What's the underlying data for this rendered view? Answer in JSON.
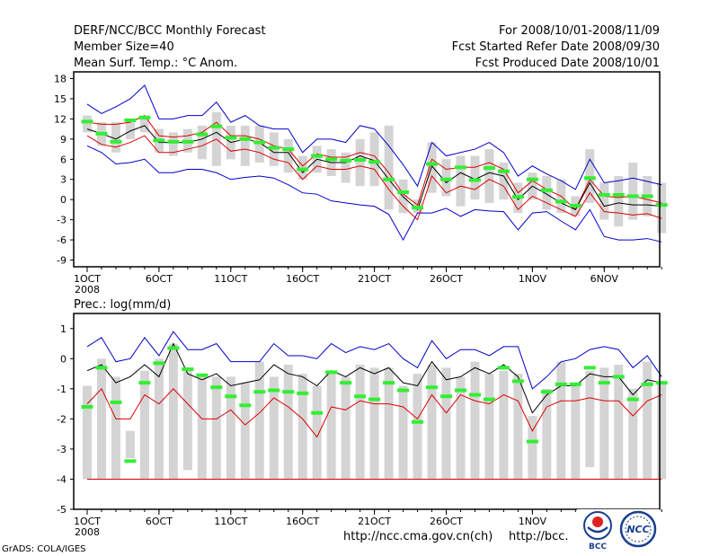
{
  "header": {
    "title": "DERF/NCC/BCC Monthly Forecast",
    "member_size": "Member Size=40",
    "variable": "Mean Surf. Temp.: °C Anom.",
    "period": "For 2008/10/01-2008/11/09",
    "start": "Fcst Started Refer Date 2008/09/30",
    "produced": "Fcst Produced Date 2008/10/01"
  },
  "footer": {
    "grads": "GrADS: COLA/IGES",
    "url1": "http://ncc.cma.gov.cn(ch)",
    "url2": "http://bcc.",
    "logo1": "BCC",
    "logo2": "NCC"
  },
  "colors": {
    "obs": "#33ee33",
    "box": "#d4d4d4",
    "ensmax": "#0000cc",
    "ensmin": "#0000cc",
    "inner": "#dd0000",
    "mean": "#000000"
  },
  "chart_data": [
    {
      "type": "line",
      "title": "Mean Surf. Temp.: °C Anom.",
      "ylim": [
        -10,
        19
      ],
      "yticks": [
        18,
        15,
        12,
        9,
        6,
        3,
        0,
        -3,
        -6,
        -9
      ],
      "xticks": [
        {
          "day": 0,
          "label": "1OCT"
        },
        {
          "day": 5,
          "label": "6OCT"
        },
        {
          "day": 10,
          "label": "11OCT"
        },
        {
          "day": 15,
          "label": "16OCT"
        },
        {
          "day": 20,
          "label": "21OCT"
        },
        {
          "day": 25,
          "label": "26OCT"
        },
        {
          "day": 31,
          "label": "1NOV"
        },
        {
          "day": 36,
          "label": "6NOV"
        }
      ],
      "year_label": "2008",
      "series": [
        {
          "name": "ensemble max",
          "values": [
            14.2,
            12.8,
            13.8,
            15,
            17,
            12,
            12,
            12.5,
            12.5,
            14.5,
            11.5,
            12.5,
            11,
            10.5,
            10.5,
            7,
            9,
            9,
            8.5,
            11,
            10.5,
            8,
            5.2,
            2,
            8.5,
            6.5,
            7,
            7.5,
            8.5,
            7,
            3.5,
            5,
            3.8,
            2.8,
            1.5,
            6,
            2.5,
            2.8,
            3.2,
            2.7,
            2.2
          ]
        },
        {
          "name": "upper",
          "values": [
            11.5,
            11.2,
            11.2,
            11.5,
            12.5,
            9.5,
            9.3,
            9.5,
            10,
            11.5,
            9.5,
            9.5,
            9,
            8,
            7.5,
            5,
            6.8,
            6.3,
            6.3,
            7,
            6.5,
            4,
            0.8,
            -0.8,
            6,
            4.5,
            4.8,
            4.8,
            5.5,
            4.5,
            1,
            2.8,
            1.5,
            0.5,
            -1.5,
            3,
            0.5,
            0.3,
            0.5,
            0,
            -0.5
          ]
        },
        {
          "name": "ensemble mean",
          "values": [
            10.5,
            9.8,
            9,
            10.2,
            11,
            8.5,
            8.5,
            8.5,
            9,
            10,
            8.5,
            9,
            8.5,
            7,
            7,
            4,
            6,
            5.5,
            5.5,
            6.5,
            5.8,
            3,
            0.4,
            -1.5,
            5,
            2.5,
            4,
            3,
            4,
            3.5,
            0,
            2,
            0.8,
            -0.5,
            -1.5,
            2.5,
            -1,
            -0.5,
            -0.8,
            -0.8,
            -1
          ]
        },
        {
          "name": "lower",
          "values": [
            9.5,
            8.2,
            7.8,
            8.5,
            9.5,
            7,
            7,
            7.5,
            8,
            9,
            7.2,
            7.5,
            7,
            6,
            5.5,
            3,
            5,
            4.5,
            4.5,
            5,
            4.5,
            1.5,
            -1,
            -3,
            3.5,
            1,
            2,
            1.5,
            3,
            2,
            -1.5,
            0.5,
            -0.5,
            -1.5,
            -2.5,
            1,
            -1.8,
            -2,
            -2.3,
            -2.1,
            -2.8
          ]
        },
        {
          "name": "ensemble min",
          "values": [
            8,
            7,
            5.3,
            5.5,
            6,
            4,
            4,
            4.5,
            4.5,
            4,
            3,
            3.3,
            3.5,
            3.2,
            2.2,
            1,
            0.8,
            -0.2,
            -0.5,
            -0.8,
            -1,
            -2.2,
            -6,
            -2,
            -2,
            -1.3,
            -2.5,
            -1.5,
            -1.7,
            -1.8,
            -4.5,
            -2,
            -1.8,
            -3.2,
            -4.5,
            -1.5,
            -5.5,
            -6,
            -6,
            -5.8,
            -6.3
          ]
        },
        {
          "name": "box top",
          "values": [
            12.5,
            11.5,
            11.5,
            11.5,
            12.5,
            10.5,
            10,
            10.5,
            11,
            13,
            11,
            11,
            11,
            10,
            9,
            6.5,
            8,
            7.5,
            7,
            9,
            10,
            11,
            3,
            0,
            8.5,
            6,
            6.5,
            6.5,
            7.5,
            5.5,
            2.5,
            4,
            3.5,
            3,
            0.5,
            7.5,
            2.5,
            3.5,
            5.5,
            3.5,
            2.5
          ]
        },
        {
          "name": "box bottom",
          "values": [
            10,
            8,
            7,
            9,
            10,
            7,
            6.5,
            7,
            6,
            5,
            6,
            5,
            5.5,
            5,
            4,
            3,
            4,
            3.5,
            2.5,
            2,
            2,
            -1.5,
            -2,
            -2,
            1,
            0.5,
            -1,
            0,
            -0.5,
            0,
            -2,
            0,
            -1.5,
            -2,
            -2.5,
            -0.5,
            -3,
            -4,
            -3,
            -2.5,
            -5
          ]
        },
        {
          "name": "observation",
          "values": [
            11.6,
            9.8,
            8.6,
            11.8,
            12.2,
            8.8,
            8.6,
            8.6,
            9.7,
            10.9,
            9.2,
            9,
            8.5,
            7.7,
            7.5,
            4.5,
            6.5,
            6,
            5.8,
            5.9,
            5.6,
            3,
            1.1,
            -1.2,
            5.3,
            3,
            4.8,
            2.9,
            4.7,
            4.2,
            0.4,
            3,
            1.4,
            -0.3,
            -0.9,
            3.2,
            0.7,
            0.7,
            0.5,
            0.5,
            -0.8
          ]
        }
      ]
    },
    {
      "type": "line",
      "title": "Prec.: log(mm/d)",
      "ylim": [
        -5,
        1.5
      ],
      "yticks": [
        1,
        0,
        -1,
        -2,
        -3,
        -4,
        -5
      ],
      "xticks": [
        {
          "day": 0,
          "label": "1OCT"
        },
        {
          "day": 5,
          "label": "6OCT"
        },
        {
          "day": 10,
          "label": "11OCT"
        },
        {
          "day": 15,
          "label": "16OCT"
        },
        {
          "day": 20,
          "label": "21OCT"
        },
        {
          "day": 25,
          "label": "26OCT"
        },
        {
          "day": 31,
          "label": "1NOV"
        }
      ],
      "year_label": "2008",
      "series": [
        {
          "name": "ensemble max",
          "values": [
            0.4,
            0.7,
            -0.1,
            0,
            0.7,
            0.1,
            0.9,
            0.3,
            0.3,
            0.5,
            -0.1,
            -0.1,
            -0.1,
            0.5,
            0.1,
            0.1,
            0,
            0.5,
            0.2,
            0.4,
            0.3,
            0.5,
            0,
            -0.3,
            0.6,
            0,
            0.3,
            0.3,
            0.1,
            0.4,
            0.4,
            -1,
            -0.6,
            -0.1,
            0,
            0.3,
            0.4,
            0.3,
            -0.3,
            0.1,
            -0.6
          ]
        },
        {
          "name": "ensemble mean",
          "values": [
            -0.4,
            -0.2,
            -0.8,
            -0.6,
            -0.2,
            -0.6,
            0.5,
            -0.5,
            -0.7,
            -0.5,
            -0.9,
            -0.8,
            -0.7,
            -0.2,
            -0.5,
            -0.6,
            -0.9,
            -0.4,
            -0.6,
            -0.3,
            -0.5,
            -0.3,
            -0.8,
            -0.9,
            -0.1,
            -0.7,
            -0.6,
            -0.3,
            -0.5,
            -0.2,
            -0.6,
            -1.8,
            -1.2,
            -0.9,
            -0.9,
            -0.5,
            -0.6,
            -0.6,
            -1.2,
            -0.7,
            -0.8
          ]
        },
        {
          "name": "lower",
          "values": [
            -1.5,
            -1,
            -2,
            -2,
            -1.2,
            -1.5,
            -1,
            -1.5,
            -2,
            -2,
            -1.7,
            -2.2,
            -1.8,
            -1.3,
            -1.6,
            -2,
            -2.6,
            -1.6,
            -1.7,
            -1.4,
            -1.5,
            -1.5,
            -1.6,
            -2,
            -1.2,
            -1.8,
            -1.2,
            -1.4,
            -1.5,
            -1.2,
            -1.4,
            -2.4,
            -1.6,
            -1.4,
            -1.4,
            -1.3,
            -1.4,
            -1.4,
            -1.9,
            -1.4,
            -1.2
          ]
        },
        {
          "name": "ensemble min",
          "values": [
            -4,
            -4,
            -4,
            -4,
            -4,
            -4,
            -4,
            -4,
            -4,
            -4,
            -4,
            -4,
            -4,
            -4,
            -4,
            -4,
            -4,
            -4,
            -4,
            -4,
            -4,
            -4,
            -4,
            -4,
            -4,
            -4,
            -4,
            -4,
            -4,
            -4,
            -4,
            -4,
            -4,
            -4,
            -4,
            -4,
            -4,
            -4,
            -4,
            -4,
            -4
          ]
        },
        {
          "name": "box top",
          "values": [
            -0.9,
            0,
            -0.6,
            -2.4,
            -0.4,
            0,
            0.5,
            -0.3,
            -0.5,
            -0.6,
            -0.6,
            -0.8,
            -0.1,
            -0.6,
            -0.2,
            -0.5,
            -0.9,
            -0.5,
            -0.6,
            -0.2,
            -0.3,
            -0.3,
            -0.9,
            -0.5,
            -0.2,
            -0.3,
            -0.6,
            -0.1,
            -0.5,
            -0.4,
            -0.5,
            -1.9,
            -1,
            -0.1,
            -0.8,
            -0.4,
            -0.3,
            -0.2,
            -1,
            -0.1,
            -0.8
          ]
        },
        {
          "name": "box bottom",
          "values": [
            -4,
            -4,
            -4,
            -3.3,
            -4,
            -4,
            -4,
            -3.7,
            -4,
            -4,
            -4,
            -4,
            -4,
            -4,
            -4,
            -4,
            -4,
            -4,
            -4,
            -4,
            -4,
            -4,
            -4,
            -4,
            -4,
            -4,
            -4,
            -4,
            -4,
            -4,
            -4,
            -4,
            -4,
            -4,
            -4,
            -3.6,
            -4,
            -4,
            -4,
            -4,
            -4
          ]
        },
        {
          "name": "observation",
          "values": [
            -1.6,
            -0.3,
            -1.45,
            -3.4,
            -0.8,
            -0.15,
            0.35,
            -0.35,
            -0.55,
            -0.95,
            -1.25,
            -1.55,
            -1.1,
            -1.05,
            -1.1,
            -1.15,
            -1.8,
            -0.45,
            -0.8,
            -1.25,
            -1.35,
            -0.8,
            -1.05,
            -2.1,
            -0.95,
            -1.25,
            -1.05,
            -1.2,
            -1.35,
            -0.3,
            -0.75,
            -2.75,
            -1.1,
            -0.85,
            -0.85,
            -0.3,
            -0.8,
            -0.6,
            -1.35,
            -0.85,
            -0.8
          ]
        }
      ]
    }
  ]
}
